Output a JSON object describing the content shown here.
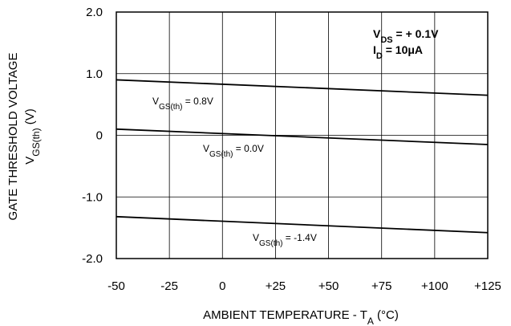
{
  "chart_data": {
    "type": "line",
    "title": "",
    "xlabel": "AMBIENT TEMPERATURE - T",
    "xlabel_sub": "A",
    "xlabel_tail": " (°C)",
    "ylabel_line1": "GATE THRESHOLD VOLTAGE",
    "ylabel_line2_main": "V",
    "ylabel_line2_sub": "GS(th)",
    "ylabel_line2_tail": " (V)",
    "xlim": [
      -50,
      125
    ],
    "ylim": [
      -2.0,
      2.0
    ],
    "x_ticks": [
      -50,
      -25,
      0,
      25,
      50,
      75,
      100,
      125
    ],
    "x_tick_labels": [
      "-50",
      "-25",
      "0",
      "+25",
      "+50",
      "+75",
      "+100",
      "+125"
    ],
    "y_ticks": [
      2.0,
      1.0,
      0,
      -1.0,
      -2.0
    ],
    "y_tick_labels": [
      "2.0",
      "1.0",
      "0",
      "-1.0",
      "-2.0"
    ],
    "grid": true,
    "series": [
      {
        "label_main": "V",
        "label_sub": "GS(th)",
        "label_tail": " = 0.8V",
        "x": [
          -50,
          125
        ],
        "y": [
          0.9,
          0.65
        ]
      },
      {
        "label_main": "V",
        "label_sub": "GS(th)",
        "label_tail": " = 0.0V",
        "x": [
          -50,
          125
        ],
        "y": [
          0.1,
          -0.15
        ]
      },
      {
        "label_main": "V",
        "label_sub": "GS(th)",
        "label_tail": " = -1.4V",
        "x": [
          -50,
          125
        ],
        "y": [
          -1.32,
          -1.58
        ]
      }
    ],
    "conditions": [
      {
        "main": "V",
        "sub": "DS",
        "tail": " = + 0.1V"
      },
      {
        "main": "I",
        "sub": "D",
        "tail": " = 10μA"
      }
    ]
  }
}
